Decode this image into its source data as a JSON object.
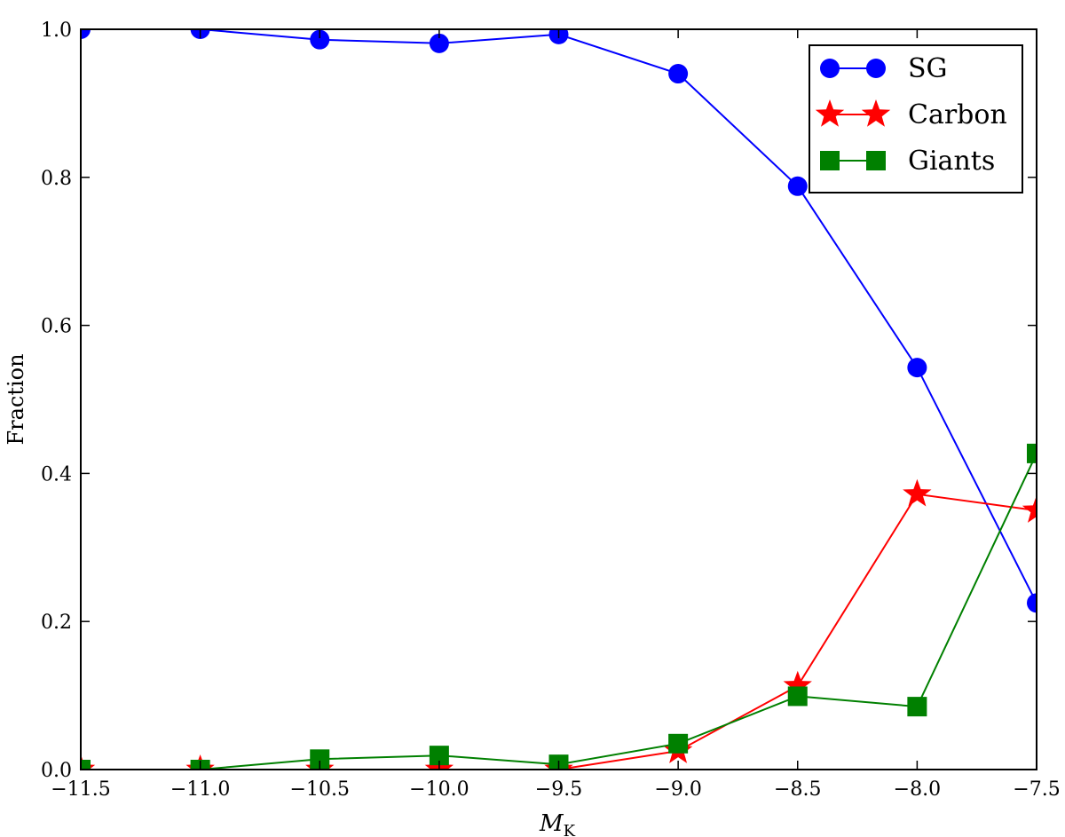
{
  "chart_data": {
    "type": "line",
    "x": [
      -11.5,
      -11.0,
      -10.5,
      -10.0,
      -9.5,
      -9.0,
      -8.5,
      -8.0,
      -7.5
    ],
    "series": [
      {
        "name": "SG",
        "color": "#0000ff",
        "marker": "circle",
        "values": [
          1.0,
          1.0,
          0.986,
          0.981,
          0.993,
          0.94,
          0.788,
          0.543,
          0.225
        ]
      },
      {
        "name": "Carbon",
        "color": "#ff0000",
        "marker": "star",
        "values": [
          0.0,
          0.0,
          0.0,
          0.0,
          0.0,
          0.025,
          0.113,
          0.372,
          0.35
        ]
      },
      {
        "name": "Giants",
        "color": "#008000",
        "marker": "square",
        "values": [
          0.0,
          0.0,
          0.014,
          0.019,
          0.007,
          0.035,
          0.099,
          0.085,
          0.427
        ]
      }
    ],
    "xlim": [
      -11.5,
      -7.5
    ],
    "ylim": [
      0.0,
      1.0
    ],
    "xticks": [
      "−11.5",
      "−11.0",
      "−10.5",
      "−10.0",
      "−9.5",
      "−9.0",
      "−8.5",
      "−8.0",
      "−7.5"
    ],
    "yticks": [
      "0.0",
      "0.2",
      "0.4",
      "0.6",
      "0.8",
      "1.0"
    ],
    "xlabel": {
      "main": "M",
      "sub": "K"
    },
    "ylabel": "Fraction",
    "grid": false,
    "legend": "top-right"
  }
}
